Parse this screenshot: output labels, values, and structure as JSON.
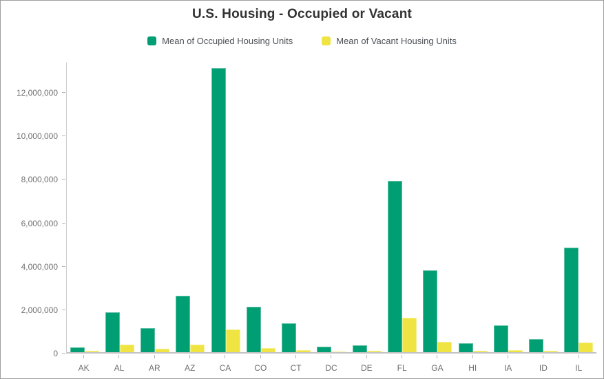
{
  "header": {
    "title": "U.S. Housing - Occupied or Vacant"
  },
  "colors": {
    "occupied_fill": "#009e73",
    "occupied_border": "#5fc0a4",
    "vacant_fill": "#f0e442",
    "vacant_border": "#f6ef8e",
    "axis_line": "#cccccc",
    "baseline": "#c2c2c2",
    "tick_text": "#6e6e6e",
    "title_text": "#323232"
  },
  "chart_data": {
    "type": "bar",
    "title": "U.S. Housing - Occupied or Vacant",
    "xlabel": "",
    "ylabel": "",
    "grid": false,
    "legend_position": "top",
    "categories": [
      "AK",
      "AL",
      "AR",
      "AZ",
      "CA",
      "CO",
      "CT",
      "DC",
      "DE",
      "FL",
      "GA",
      "HI",
      "IA",
      "ID",
      "IL"
    ],
    "series": [
      {
        "name": "Mean of Occupied Housing Units",
        "color": "#009e73",
        "border_color": "#5fc0a4",
        "values": [
          230000,
          1850000,
          1130000,
          2610000,
          13150000,
          2100000,
          1350000,
          260000,
          330000,
          7930000,
          3800000,
          430000,
          1230000,
          600000,
          4850000
        ]
      },
      {
        "name": "Mean of Vacant Housing Units",
        "color": "#f0e442",
        "border_color": "#f6ef8e",
        "values": [
          55000,
          340000,
          160000,
          350000,
          1050000,
          190000,
          100000,
          35000,
          55000,
          1580000,
          470000,
          65000,
          105000,
          70000,
          450000
        ]
      }
    ],
    "ylim": [
      0,
      13400000
    ],
    "yticks": [
      {
        "value": 0,
        "label": "0"
      },
      {
        "value": 2000000,
        "label": "2,000,000"
      },
      {
        "value": 4000000,
        "label": "4,000,000"
      },
      {
        "value": 6000000,
        "label": "6,000,000"
      },
      {
        "value": 8000000,
        "label": "8,000,000"
      },
      {
        "value": 10000000,
        "label": "10,000,000"
      },
      {
        "value": 12000000,
        "label": "12,000,000"
      }
    ]
  }
}
